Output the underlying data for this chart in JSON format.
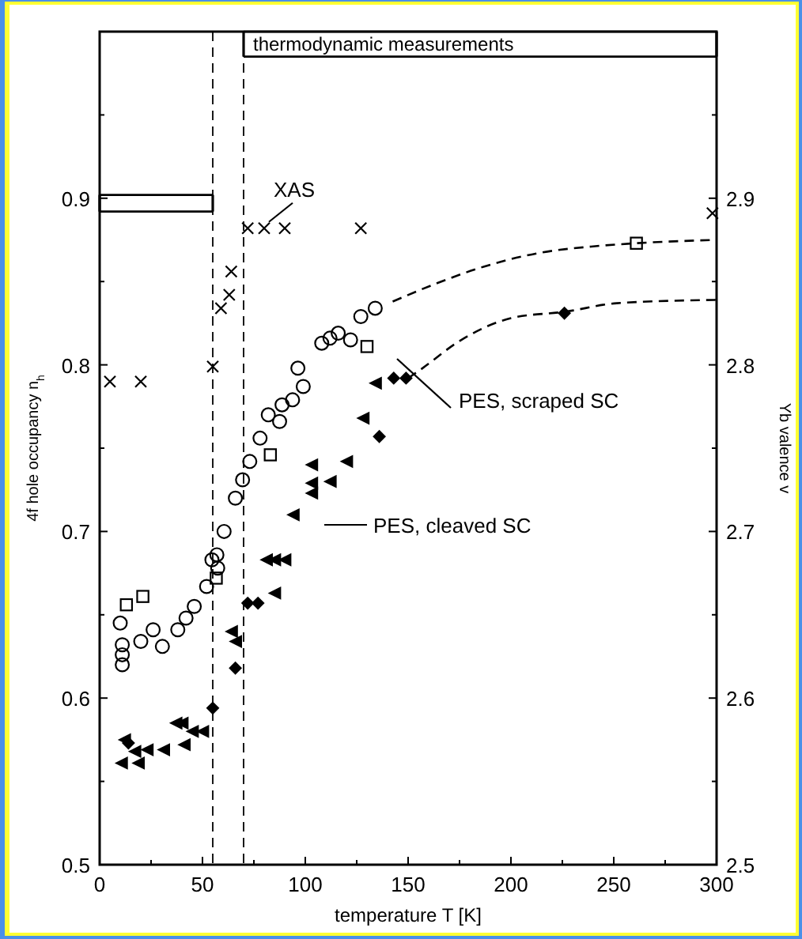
{
  "chart_data": {
    "type": "scatter",
    "xlabel": "temperature T [K]",
    "ylabel": "4f hole occupancy n$_{h}$",
    "y2label": "Yb valence v",
    "xlim": [
      0,
      300
    ],
    "xticks": [
      0,
      {
        "value": 25,
        "label": null
      },
      50,
      {
        "value": 75,
        "label": null
      },
      100,
      {
        "value": 125,
        "label": null
      },
      150,
      {
        "value": 175,
        "label": null
      },
      200,
      {
        "value": 225,
        "label": null
      },
      250,
      {
        "value": 275,
        "label": null
      },
      300
    ],
    "ylim": [
      0.5,
      1.0
    ],
    "yticks": [
      0.5,
      {
        "value": 0.55,
        "label": null
      },
      0.6,
      {
        "value": 0.65,
        "label": null
      },
      0.7,
      {
        "value": 0.75,
        "label": null
      },
      0.8,
      {
        "value": 0.85,
        "label": null
      },
      0.9,
      {
        "value": 0.95,
        "label": null
      }
    ],
    "y2lim": [
      2.5,
      3.0
    ],
    "y2ticks": [
      2.5,
      {
        "value": 2.55,
        "label": null
      },
      2.6,
      {
        "value": 2.65,
        "label": null
      },
      2.7,
      {
        "value": 2.75,
        "label": null
      },
      2.8,
      {
        "value": 2.85,
        "label": null
      },
      2.9,
      {
        "value": 2.95,
        "label": null
      }
    ],
    "grid": false,
    "ref_lines": [
      {
        "axis": "x",
        "value": 55,
        "color": "#000000",
        "line_style": "dashed"
      },
      {
        "axis": "x",
        "value": 70,
        "color": "#000000",
        "line_style": "dashed"
      }
    ],
    "annotations": [
      {
        "text": "XAS",
        "x": 80,
        "y": 0.882
      },
      "PES, scraped SC",
      "PES, cleaved SC",
      "thermodynamic measurements"
    ],
    "series": [
      {
        "marker": "cross",
        "color": "#000000",
        "x": [
          5,
          20,
          55,
          59,
          63,
          64,
          72,
          80,
          90,
          127,
          298
        ],
        "values": [
          0.79,
          0.79,
          0.799,
          0.834,
          0.842,
          0.856,
          0.882,
          0.882,
          0.882,
          0.882,
          0.891
        ]
      },
      {
        "marker": "circle",
        "color": "#000000",
        "x": [
          10,
          11,
          11,
          11,
          20,
          26,
          30.5,
          38,
          42,
          46,
          52,
          54.6,
          57,
          57.4,
          60.5,
          66,
          69.5,
          73,
          78,
          82,
          87.5,
          88.7,
          93.8,
          99,
          96.4,
          108,
          112,
          116,
          122,
          127,
          134
        ],
        "values": [
          0.645,
          0.632,
          0.626,
          0.62,
          0.634,
          0.641,
          0.631,
          0.641,
          0.648,
          0.655,
          0.667,
          0.683,
          0.686,
          0.678,
          0.7,
          0.72,
          0.731,
          0.742,
          0.756,
          0.77,
          0.766,
          0.776,
          0.779,
          0.787,
          0.798,
          0.813,
          0.816,
          0.819,
          0.815,
          0.829,
          0.834
        ]
      },
      {
        "marker": "square",
        "color": "#000000",
        "x": [
          13,
          21,
          56.7,
          83,
          130,
          261
        ],
        "values": [
          0.656,
          0.661,
          0.672,
          0.746,
          0.811,
          0.873
        ]
      },
      {
        "marker": "diamond",
        "color": "#000000",
        "x": [
          14,
          55,
          66,
          72,
          77,
          136,
          143,
          149,
          226
        ],
        "values": [
          0.573,
          0.594,
          0.618,
          0.657,
          0.657,
          0.757,
          0.792,
          0.792,
          0.831
        ]
      },
      {
        "marker": "triangle",
        "color": "#000000",
        "x": [
          10.5,
          12,
          17,
          18.7,
          23,
          31,
          37,
          40,
          41,
          45,
          50,
          64,
          66,
          81,
          85,
          85,
          90,
          94,
          103,
          103,
          103,
          112,
          120,
          128,
          134
        ],
        "values": [
          0.561,
          0.575,
          0.568,
          0.561,
          0.569,
          0.569,
          0.585,
          0.585,
          0.572,
          0.58,
          0.58,
          0.64,
          0.634,
          0.683,
          0.683,
          0.663,
          0.683,
          0.71,
          0.74,
          0.729,
          0.723,
          0.73,
          0.742,
          0.768,
          0.789
        ]
      },
      {
        "type": "line",
        "marker": "none",
        "line_style": "dashed",
        "color": "#000000",
        "x": [
          142.5,
          162,
          187,
          213,
          239,
          261,
          300
        ],
        "values": [
          0.838,
          0.848,
          0.859,
          0.867,
          0.871,
          0.873,
          0.875
        ]
      },
      {
        "type": "line",
        "marker": "none",
        "line_style": "dashed",
        "color": "#000000",
        "x": [
          150,
          157,
          174.6,
          200,
          227,
          251.5,
          300
        ],
        "values": [
          0.792,
          0.798,
          0.814,
          0.828,
          0.832,
          0.837,
          0.839
        ]
      },
      {
        "type": "line",
        "marker": "none",
        "line_style": "solid",
        "color": "#000000",
        "x": [
          0,
          55
        ],
        "values": [
          0.892,
          0.892
        ]
      },
      {
        "type": "line",
        "marker": "none",
        "line_style": "solid",
        "color": "#000000",
        "x": [
          0,
          55
        ],
        "values": [
          0.902,
          0.902
        ]
      },
      {
        "type": "line",
        "marker": "none",
        "line_style": "solid",
        "color": "#000000",
        "x": [
          70,
          300
        ],
        "values": [
          0.985,
          0.985
        ]
      },
      {
        "type": "line",
        "marker": "none",
        "line_style": "solid",
        "color": "#000000",
        "x": [
          70,
          300
        ],
        "values": [
          1.0,
          1.0
        ]
      }
    ]
  }
}
